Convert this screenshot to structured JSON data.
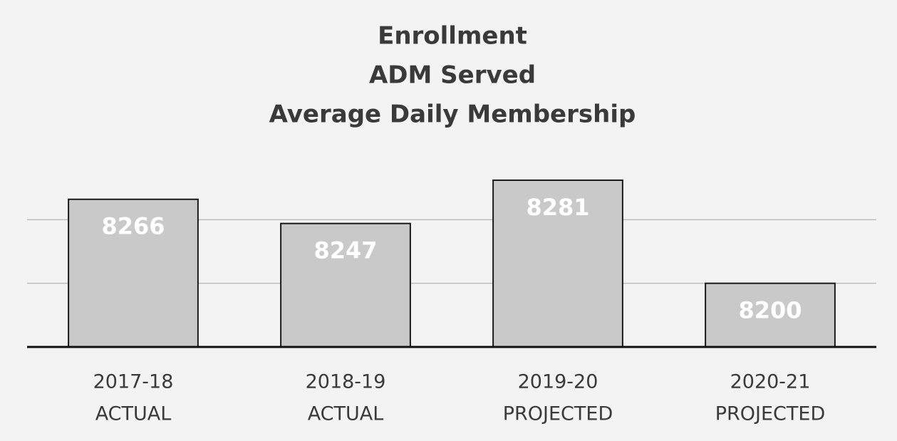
{
  "chart_data": {
    "type": "bar",
    "title": "Enrollment",
    "subtitle": [
      "ADM Served",
      "Average Daily Membership"
    ],
    "categories": [
      [
        "2017-18",
        "ACTUAL"
      ],
      [
        "2018-19",
        "ACTUAL"
      ],
      [
        "2019-20",
        "PROJECTED"
      ],
      [
        "2020-21",
        "PROJECTED"
      ]
    ],
    "values": [
      8266,
      8247,
      8281,
      8200
    ],
    "color": "#c9c9c9",
    "ylim": [
      8150,
      8300
    ],
    "yticks": [
      8200,
      8250
    ],
    "grid": true
  }
}
